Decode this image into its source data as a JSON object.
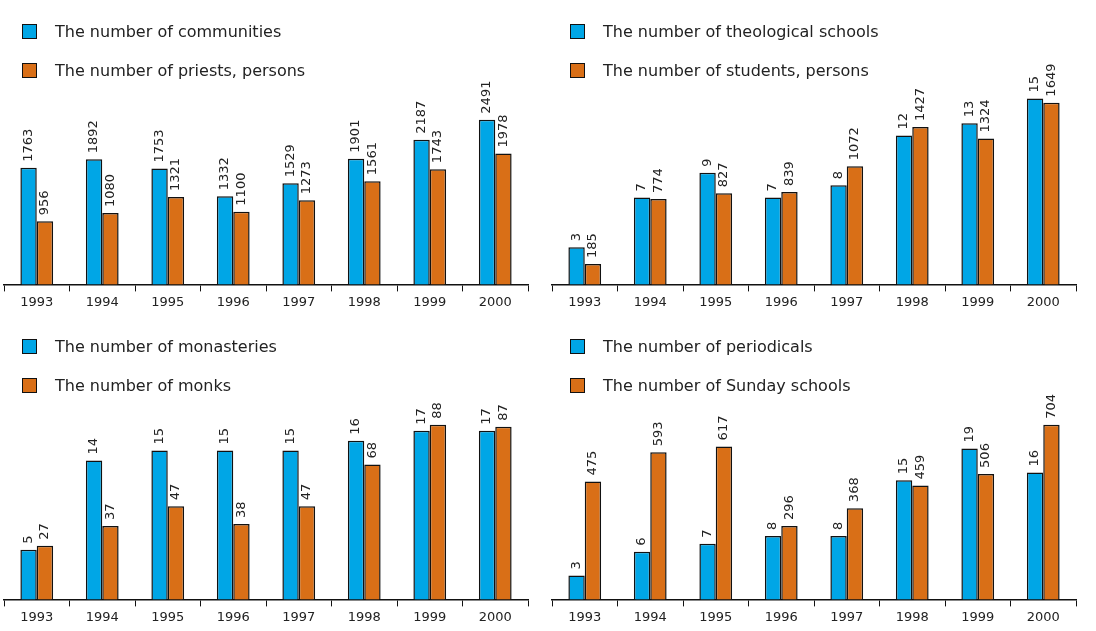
{
  "chart_data": [
    {
      "type": "bar",
      "categories": [
        "1993",
        "1994",
        "1995",
        "1996",
        "1997",
        "1998",
        "1999",
        "2000"
      ],
      "legend": "top left",
      "data_labels": true,
      "series": [
        {
          "name": "The number of communities",
          "color": "#00a6e6",
          "values": [
            1763,
            1892,
            1753,
            1332,
            1529,
            1901,
            2187,
            2491
          ]
        },
        {
          "name": "The number of priests, persons",
          "color": "#d96f17",
          "values": [
            956,
            1080,
            1321,
            1100,
            1273,
            1561,
            1743,
            1978
          ]
        }
      ]
    },
    {
      "type": "bar",
      "categories": [
        "1993",
        "1994",
        "1995",
        "1996",
        "1997",
        "1998",
        "1999",
        "2000"
      ],
      "legend": "top left",
      "data_labels": true,
      "series": [
        {
          "name": "The number of theological schools",
          "color": "#00a6e6",
          "values": [
            3,
            7,
            9,
            7,
            8,
            12,
            13,
            15
          ]
        },
        {
          "name": "The number of students, persons",
          "color": "#d96f17",
          "axis": "y2",
          "values": [
            185,
            774,
            827,
            839,
            1072,
            1427,
            1324,
            1649
          ]
        }
      ]
    },
    {
      "type": "bar",
      "categories": [
        "1993",
        "1994",
        "1995",
        "1996",
        "1997",
        "1998",
        "1999",
        "2000"
      ],
      "legend": "top left",
      "data_labels": true,
      "series": [
        {
          "name": "The number of monasteries",
          "color": "#00a6e6",
          "values": [
            5,
            14,
            15,
            15,
            15,
            16,
            17,
            17
          ]
        },
        {
          "name": "The number of monks",
          "color": "#d96f17",
          "axis": "y2",
          "values": [
            27,
            37,
            47,
            38,
            47,
            68,
            88,
            87
          ]
        }
      ]
    },
    {
      "type": "bar",
      "categories": [
        "1993",
        "1994",
        "1995",
        "1996",
        "1997",
        "1998",
        "1999",
        "2000"
      ],
      "legend": "top left",
      "data_labels": true,
      "series": [
        {
          "name": "The number of periodicals",
          "color": "#00a6e6",
          "values": [
            3,
            6,
            7,
            8,
            8,
            15,
            19,
            16
          ]
        },
        {
          "name": "The number of Sunday schools",
          "color": "#d96f17",
          "axis": "y2",
          "values": [
            475,
            593,
            617,
            296,
            368,
            459,
            506,
            704
          ]
        }
      ]
    }
  ]
}
